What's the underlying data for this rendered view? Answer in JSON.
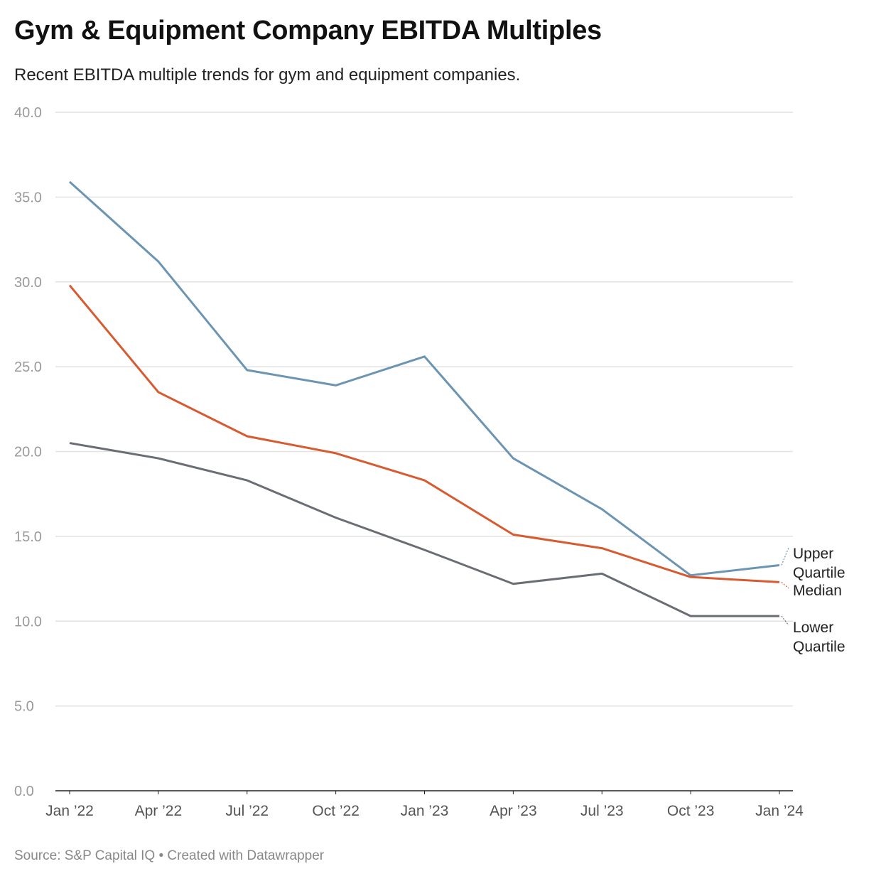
{
  "chart_data": {
    "type": "line",
    "title": "Gym & Equipment Company EBITDA Multiples",
    "subtitle": "Recent EBITDA multiple trends for gym and equipment companies.",
    "source": "Source: S&P Capital IQ • Created with Datawrapper",
    "xlabel": "",
    "ylabel": "",
    "ylim": [
      0,
      40
    ],
    "yticks": [
      "0.0",
      "5.0",
      "10.0",
      "15.0",
      "20.0",
      "25.0",
      "30.0",
      "35.0",
      "40.0"
    ],
    "grid": true,
    "categories": [
      "Jan ’22",
      "Apr ’22",
      "Jul ’22",
      "Oct ’22",
      "Jan ’23",
      "Apr ’23",
      "Jul ’23",
      "Oct ’23",
      "Jan ’24"
    ],
    "series": [
      {
        "name": "Upper Quartile",
        "label_lines": [
          "Upper",
          "Quartile"
        ],
        "color": "#6b95b3",
        "values": [
          35.9,
          31.2,
          24.8,
          23.9,
          25.6,
          19.6,
          16.6,
          12.7,
          13.3
        ]
      },
      {
        "name": "Median",
        "label_lines": [
          "Median"
        ],
        "color": "#d85a30",
        "values": [
          29.8,
          23.5,
          20.9,
          19.9,
          18.3,
          15.1,
          14.3,
          12.6,
          12.3
        ]
      },
      {
        "name": "Lower Quartile",
        "label_lines": [
          "Lower",
          "Quartile"
        ],
        "color": "#6a6e74",
        "values": [
          20.5,
          19.6,
          18.3,
          16.1,
          14.2,
          12.2,
          12.8,
          10.3,
          10.3
        ]
      }
    ]
  }
}
